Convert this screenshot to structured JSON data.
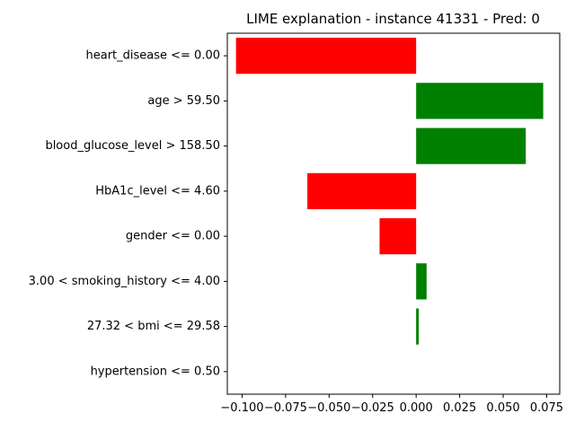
{
  "chart_data": {
    "type": "bar",
    "orientation": "horizontal",
    "title": "LIME explanation - instance 41331 - Pred: 0",
    "xlabel": "",
    "ylabel": "",
    "xlim": [
      -0.1085,
      0.0825
    ],
    "grid": false,
    "categories": [
      "heart_disease <= 0.00",
      "age > 59.50",
      "blood_glucose_level > 158.50",
      "HbA1c_level <= 4.60",
      "gender <= 0.00",
      "3.00 < smoking_history <= 4.00",
      "27.32 < bmi <= 29.58",
      "hypertension <= 0.50"
    ],
    "values": [
      -0.1035,
      0.073,
      0.063,
      -0.0625,
      -0.021,
      0.006,
      0.0015,
      0.0
    ],
    "x_ticks": [
      -0.1,
      -0.075,
      -0.05,
      -0.025,
      0.0,
      0.025,
      0.05,
      0.075
    ],
    "x_tick_labels": [
      "−0.100",
      "−0.075",
      "−0.050",
      "−0.025",
      "0.000",
      "0.025",
      "0.050",
      "0.075"
    ],
    "colors": {
      "positive": "#008000",
      "negative": "#ff0000"
    }
  }
}
